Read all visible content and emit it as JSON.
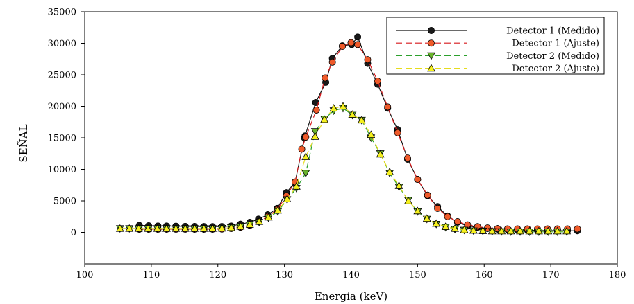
{
  "chart_data": {
    "type": "line",
    "xlabel": "Energía (keV)",
    "ylabel": "SEÑAL",
    "xlim": [
      100,
      180
    ],
    "ylim": [
      -5000,
      35000
    ],
    "x_ticks": [
      100,
      110,
      120,
      130,
      140,
      150,
      160,
      170,
      180
    ],
    "y_ticks": [
      0,
      5000,
      10000,
      15000,
      20000,
      25000,
      30000,
      35000
    ],
    "grid": false,
    "legend_position": "top-right",
    "series": [
      {
        "name": "Detector 1 (Medido)",
        "color": "#111111",
        "line_style": "solid",
        "marker": "circle",
        "marker_fill": "#1a1a1a",
        "x": [
          108.2,
          109.6,
          111.0,
          112.3,
          113.7,
          115.1,
          116.5,
          117.9,
          119.2,
          120.6,
          122.0,
          123.4,
          124.8,
          126.1,
          127.5,
          128.9,
          130.3,
          131.6,
          133.0,
          133.1,
          134.7,
          136.2,
          137.2,
          138.7,
          140.1,
          141.0,
          142.5,
          144.0,
          145.5,
          147.0,
          148.5,
          150.0,
          151.5,
          153.0,
          154.5,
          156.0,
          157.5,
          159.0,
          160.5,
          162.0,
          163.5,
          165.0,
          166.5,
          168.0,
          169.5,
          171.0,
          172.5,
          174.0
        ],
        "y": [
          1100,
          1050,
          1000,
          1000,
          980,
          950,
          930,
          920,
          900,
          920,
          1000,
          1300,
          1600,
          2100,
          2800,
          3800,
          6300,
          8000,
          15000,
          15300,
          20600,
          23800,
          27600,
          29600,
          29800,
          31000,
          26800,
          23500,
          19700,
          16300,
          11600,
          8400,
          5800,
          4100,
          2600,
          1600,
          1000,
          800,
          600,
          500,
          450,
          400,
          350,
          300,
          280,
          270,
          250,
          250
        ]
      },
      {
        "name": "Detector 1 (Ajuste)",
        "color": "#d7191c",
        "line_style": "dashed",
        "marker": "circle",
        "marker_fill": "#ef5a2a",
        "x": [
          108.2,
          109.6,
          111.0,
          112.3,
          113.7,
          115.1,
          116.5,
          117.9,
          119.2,
          120.6,
          122.0,
          123.4,
          124.8,
          126.1,
          127.5,
          128.9,
          130.3,
          131.6,
          132.6,
          133.2,
          134.8,
          136.1,
          137.2,
          138.7,
          140.0,
          141.0,
          142.5,
          144.0,
          145.5,
          147.0,
          148.5,
          150.0,
          151.5,
          153.0,
          154.5,
          156.0,
          157.5,
          159.0,
          160.5,
          162.0,
          163.5,
          165.0,
          166.5,
          168.0,
          169.5,
          171.0,
          172.5,
          174.0
        ],
        "y": [
          500,
          500,
          500,
          500,
          500,
          500,
          500,
          500,
          500,
          520,
          600,
          800,
          1100,
          1700,
          2500,
          3600,
          5800,
          8000,
          13200,
          15100,
          19400,
          24500,
          27000,
          29500,
          30100,
          29800,
          27400,
          24000,
          19900,
          15800,
          11800,
          8400,
          5900,
          3800,
          2500,
          1700,
          1200,
          900,
          700,
          600,
          550,
          550,
          550,
          550,
          550,
          550,
          550,
          550
        ]
      },
      {
        "name": "Detector 2 (Medido)",
        "color": "#2ca02c",
        "line_style": "dashed",
        "marker": "triangle-down",
        "marker_fill": "#6ab42d",
        "x": [
          105.3,
          106.7,
          108.1,
          109.5,
          110.9,
          112.3,
          113.7,
          115.1,
          116.5,
          117.9,
          119.2,
          120.6,
          122.0,
          123.4,
          124.8,
          126.2,
          127.6,
          129.0,
          130.4,
          131.8,
          133.2,
          134.6,
          136.0,
          137.4,
          138.8,
          140.2,
          141.6,
          143.0,
          144.4,
          145.8,
          147.2,
          148.6,
          150.0,
          151.4,
          152.8,
          154.2,
          155.6,
          157.0,
          158.4,
          159.8,
          161.2,
          162.6,
          164.0,
          165.4,
          166.8,
          168.2,
          169.6,
          171.0,
          172.4
        ],
        "y": [
          600,
          600,
          600,
          600,
          600,
          600,
          600,
          600,
          600,
          600,
          600,
          650,
          750,
          900,
          1200,
          1600,
          2300,
          3300,
          5200,
          7000,
          9400,
          16000,
          18000,
          19300,
          19700,
          18600,
          17800,
          15000,
          12500,
          9400,
          7200,
          5100,
          3300,
          2100,
          1300,
          800,
          500,
          350,
          250,
          200,
          150,
          120,
          100,
          90,
          80,
          80,
          80,
          80,
          80
        ]
      },
      {
        "name": "Detector 2 (Ajuste)",
        "color": "#e6dc1e",
        "line_style": "dashed",
        "marker": "triangle-up",
        "marker_fill": "#f5f01e",
        "x": [
          105.3,
          106.7,
          108.1,
          109.5,
          110.9,
          112.3,
          113.7,
          115.1,
          116.5,
          117.9,
          119.2,
          120.6,
          122.0,
          123.4,
          124.8,
          126.2,
          127.6,
          129.0,
          130.4,
          131.8,
          133.2,
          134.6,
          136.0,
          137.4,
          138.8,
          140.2,
          141.6,
          143.0,
          144.4,
          145.8,
          147.2,
          148.6,
          150.0,
          151.4,
          152.8,
          154.2,
          155.6,
          157.0,
          158.4,
          159.8,
          161.2,
          162.6,
          164.0,
          165.4,
          166.8,
          168.2,
          169.6,
          171.0,
          172.4
        ],
        "y": [
          600,
          600,
          600,
          600,
          600,
          600,
          600,
          600,
          600,
          600,
          600,
          650,
          750,
          950,
          1250,
          1700,
          2400,
          3500,
          5300,
          7300,
          12000,
          15200,
          17900,
          19700,
          20000,
          18700,
          17800,
          15500,
          12400,
          9600,
          7400,
          5000,
          3400,
          2200,
          1400,
          900,
          600,
          400,
          300,
          250,
          200,
          200,
          200,
          200,
          200,
          200,
          200,
          200,
          200
        ]
      }
    ]
  }
}
